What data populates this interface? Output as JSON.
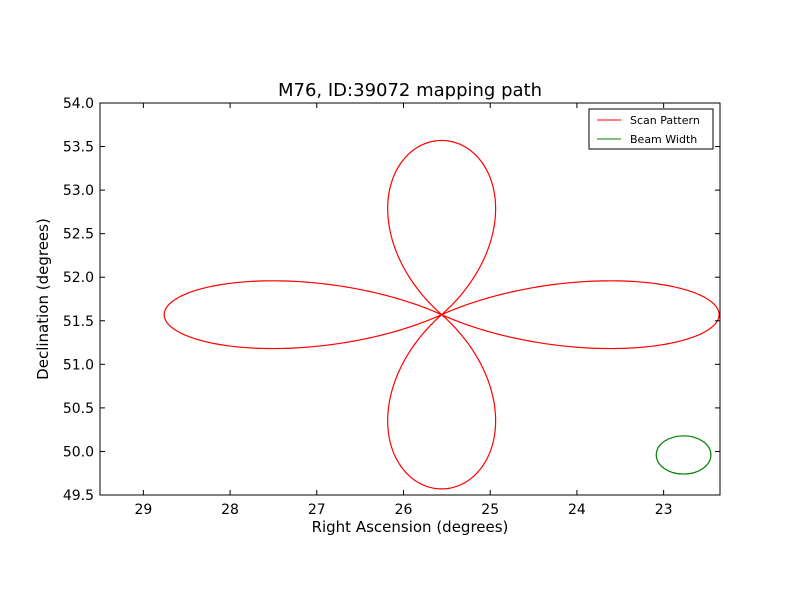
{
  "chart_data": {
    "type": "line",
    "title": "M76, ID:39072 mapping path",
    "xlabel": "Right Ascension (degrees)",
    "ylabel": "Declination (degrees)",
    "xlim": [
      29.5,
      22.35
    ],
    "ylim": [
      49.5,
      54.0
    ],
    "x_inverted": true,
    "xticks": [
      29,
      28,
      27,
      26,
      25,
      24,
      23
    ],
    "yticks": [
      49.5,
      50.0,
      50.5,
      51.0,
      51.5,
      52.0,
      52.5,
      53.0,
      53.5,
      54.0
    ],
    "xtick_labels": [
      "29",
      "28",
      "27",
      "26",
      "25",
      "24",
      "23"
    ],
    "ytick_labels": [
      "49.5",
      "50.0",
      "50.5",
      "51.0",
      "51.5",
      "52.0",
      "52.5",
      "53.0",
      "53.5",
      "54.0"
    ],
    "grid": false,
    "legend_position": "top-right",
    "series": [
      {
        "name": "Scan Pattern",
        "color": "#ff0000",
        "shape": "four-lobed rose curve",
        "center": [
          25.56,
          51.57
        ],
        "ra_lobe_extent": 3.2,
        "dec_lobe_extent": 2.0,
        "ra_lobe_halfwidth": 0.55,
        "dec_lobe_halfwidth": 0.88,
        "ra_range": [
          22.35,
          28.75
        ],
        "dec_range": [
          49.57,
          53.57
        ]
      },
      {
        "name": "Beam Width",
        "color": "#008000",
        "shape": "circle",
        "center": [
          22.77,
          49.96
        ],
        "radius": 0.33
      }
    ]
  }
}
